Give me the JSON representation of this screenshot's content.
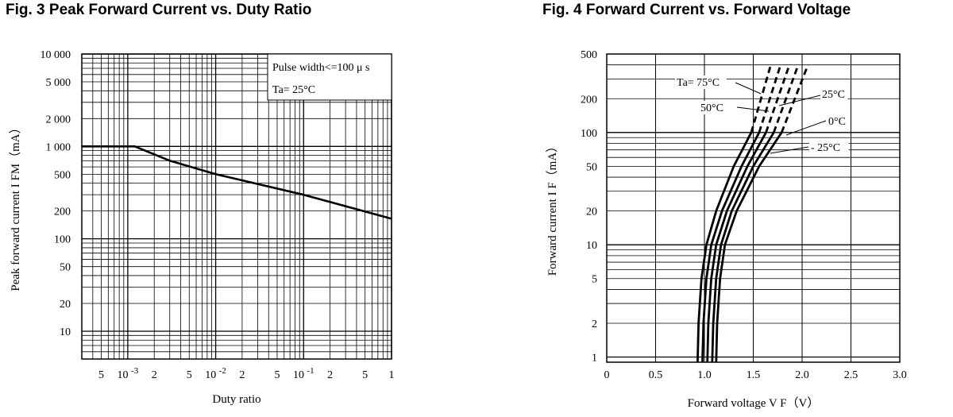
{
  "charts_titles": {
    "fig3": "Fig. 3 Peak Forward Current vs. Duty Ratio",
    "fig4": "Fig. 4 Forward Current vs. Forward Voltage"
  },
  "chart_data": [
    {
      "type": "line",
      "title": "Fig. 3 Peak Forward Current vs. Duty Ratio",
      "xlabel": "Duty ratio",
      "ylabel": "Peak forward current I FM（mA）",
      "x_scale": "log",
      "y_scale": "log",
      "xlim": [
        0.0003,
        1
      ],
      "ylim": [
        5,
        10000
      ],
      "x_ticks": [
        {
          "value": 0.0005,
          "label": "5"
        },
        {
          "value": 0.001,
          "label": "10 -3"
        },
        {
          "value": 0.002,
          "label": "2"
        },
        {
          "value": 0.005,
          "label": "5"
        },
        {
          "value": 0.01,
          "label": "10 -2"
        },
        {
          "value": 0.02,
          "label": "2"
        },
        {
          "value": 0.05,
          "label": "5"
        },
        {
          "value": 0.1,
          "label": "10 -1"
        },
        {
          "value": 0.2,
          "label": "2"
        },
        {
          "value": 0.5,
          "label": "5"
        },
        {
          "value": 1,
          "label": "1"
        }
      ],
      "y_ticks": [
        {
          "value": 10,
          "label": "10"
        },
        {
          "value": 20,
          "label": "20"
        },
        {
          "value": 50,
          "label": "50"
        },
        {
          "value": 100,
          "label": "100"
        },
        {
          "value": 200,
          "label": "200"
        },
        {
          "value": 500,
          "label": "500"
        },
        {
          "value": 1000,
          "label": "1 000"
        },
        {
          "value": 2000,
          "label": "2 000"
        },
        {
          "value": 5000,
          "label": "5 000"
        },
        {
          "value": 10000,
          "label": "10 000"
        }
      ],
      "grid": true,
      "series": [
        {
          "x": [
            0.0003,
            0.0012,
            0.003,
            0.01,
            0.1,
            1
          ],
          "y": [
            1000,
            1000,
            700,
            500,
            300,
            165
          ]
        }
      ],
      "annotations": [
        "Pulse width<=100 μ s",
        "Ta= 25°C"
      ]
    },
    {
      "type": "line",
      "title": "Fig. 4 Forward Current vs. Forward Voltage",
      "xlabel": "Forward voltage V F（V）",
      "ylabel": "Forward current I F（mA）",
      "x_scale": "linear",
      "y_scale": "log",
      "xlim": [
        0,
        3.0
      ],
      "ylim": [
        0.9,
        500
      ],
      "x_ticks": [
        {
          "value": 0,
          "label": "0"
        },
        {
          "value": 0.5,
          "label": "0.5"
        },
        {
          "value": 1.0,
          "label": "1.0"
        },
        {
          "value": 1.5,
          "label": "1.5"
        },
        {
          "value": 2.0,
          "label": "2.0"
        },
        {
          "value": 2.5,
          "label": "2.5"
        },
        {
          "value": 3.0,
          "label": "3.0"
        }
      ],
      "y_ticks": [
        {
          "value": 1,
          "label": "1"
        },
        {
          "value": 2,
          "label": "2"
        },
        {
          "value": 5,
          "label": "5"
        },
        {
          "value": 10,
          "label": "10"
        },
        {
          "value": 20,
          "label": "20"
        },
        {
          "value": 50,
          "label": "50"
        },
        {
          "value": 100,
          "label": "100"
        },
        {
          "value": 200,
          "label": "200"
        },
        {
          "value": 500,
          "label": "500"
        }
      ],
      "grid": true,
      "series": [
        {
          "name": "Ta= 75°C",
          "x": [
            0.93,
            0.94,
            0.97,
            1.02,
            1.12,
            1.3,
            1.48,
            1.68
          ],
          "y": [
            0.9,
            2,
            5,
            10,
            20,
            50,
            100,
            400
          ],
          "solid_until_y": 100
        },
        {
          "name": "50°C",
          "x": [
            0.98,
            0.99,
            1.02,
            1.07,
            1.18,
            1.38,
            1.56,
            1.78
          ],
          "y": [
            0.9,
            2,
            5,
            10,
            20,
            50,
            100,
            400
          ],
          "solid_until_y": 100
        },
        {
          "name": "25°C",
          "x": [
            1.03,
            1.04,
            1.07,
            1.12,
            1.23,
            1.44,
            1.63,
            1.87
          ],
          "y": [
            0.9,
            2,
            5,
            10,
            20,
            50,
            100,
            400
          ],
          "solid_until_y": 100
        },
        {
          "name": "0°C",
          "x": [
            1.08,
            1.09,
            1.12,
            1.17,
            1.28,
            1.5,
            1.71,
            1.96
          ],
          "y": [
            0.9,
            2,
            5,
            10,
            20,
            50,
            100,
            400
          ],
          "solid_until_y": 100
        },
        {
          "name": "- 25°C",
          "x": [
            1.12,
            1.13,
            1.16,
            1.21,
            1.33,
            1.56,
            1.79,
            2.06
          ],
          "y": [
            0.9,
            2,
            5,
            10,
            20,
            50,
            100,
            400
          ],
          "solid_until_y": 100
        }
      ]
    }
  ]
}
